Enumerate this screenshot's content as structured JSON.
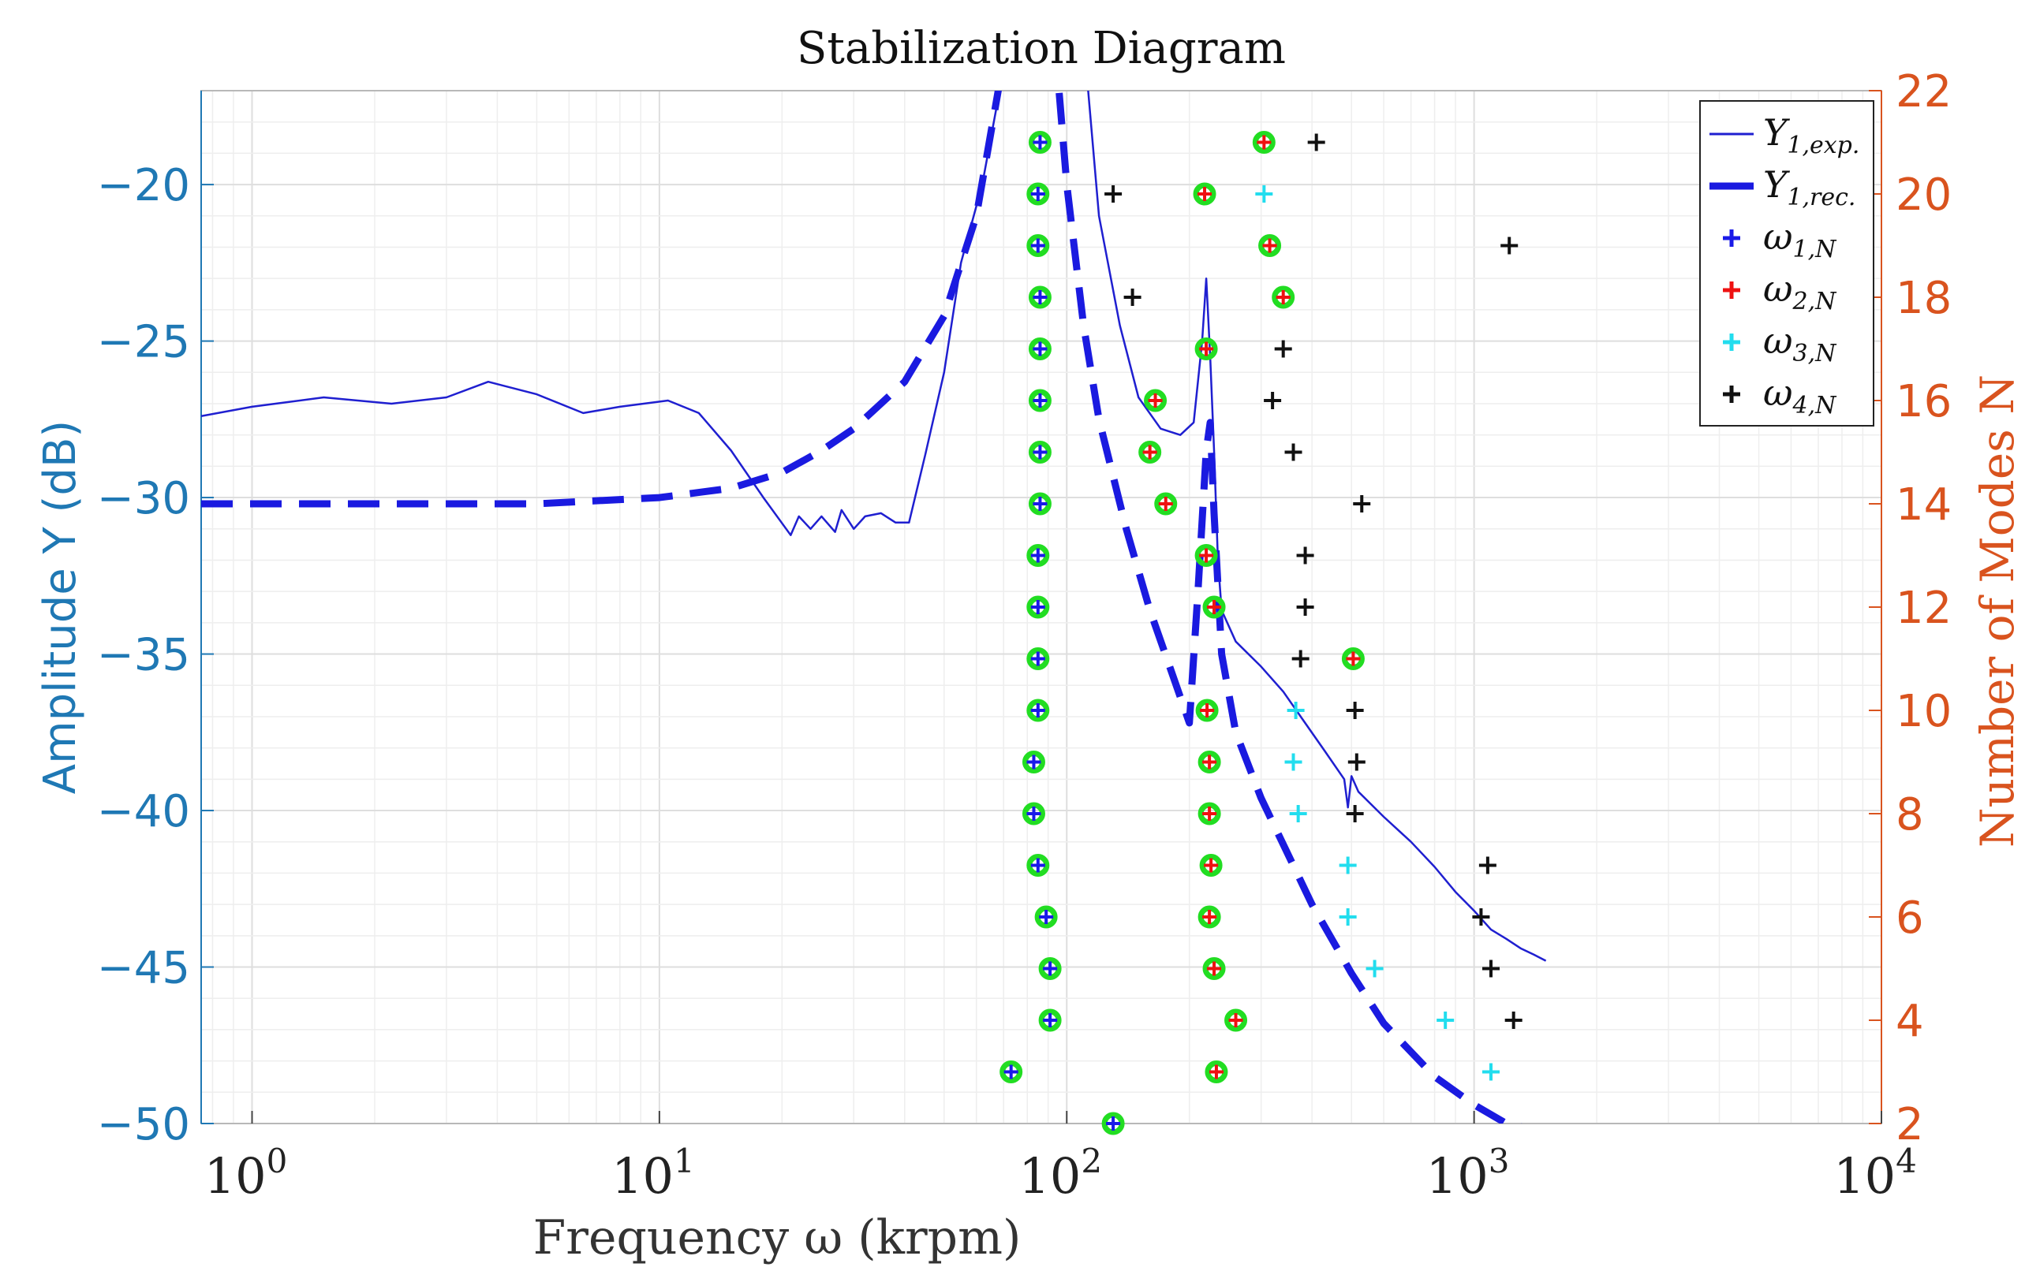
{
  "chart_data": {
    "type": "line",
    "title": "Stabilization Diagram",
    "xlabel": "Frequency ω (krpm)",
    "ylabel_left": "Amplitude Y (dB)",
    "ylabel_right": "Number of Modes N",
    "x_scale": "log",
    "xlim": [
      0.75,
      10000
    ],
    "ylim_left": [
      -50,
      -17
    ],
    "ylim_right": [
      2,
      22
    ],
    "grid": true,
    "x_ticks": [
      {
        "value": 1,
        "base": "10",
        "exp": "0"
      },
      {
        "value": 10,
        "base": "10",
        "exp": "1"
      },
      {
        "value": 100,
        "base": "10",
        "exp": "2"
      },
      {
        "value": 1000,
        "base": "10",
        "exp": "3"
      },
      {
        "value": 10000,
        "base": "10",
        "exp": "4"
      }
    ],
    "y_ticks_left": [
      {
        "value": -20,
        "label": "−20"
      },
      {
        "value": -25,
        "label": "−25"
      },
      {
        "value": -30,
        "label": "−30"
      },
      {
        "value": -35,
        "label": "−35"
      },
      {
        "value": -40,
        "label": "−40"
      },
      {
        "value": -45,
        "label": "−45"
      },
      {
        "value": -50,
        "label": "−50"
      }
    ],
    "y_ticks_right": [
      {
        "value": 22,
        "label": "22"
      },
      {
        "value": 20,
        "label": "20"
      },
      {
        "value": 18,
        "label": "18"
      },
      {
        "value": 16,
        "label": "16"
      },
      {
        "value": 14,
        "label": "14"
      },
      {
        "value": 12,
        "label": "12"
      },
      {
        "value": 10,
        "label": "10"
      },
      {
        "value": 8,
        "label": "8"
      },
      {
        "value": 6,
        "label": "6"
      },
      {
        "value": 4,
        "label": "4"
      },
      {
        "value": 2,
        "label": "2"
      }
    ],
    "legend": {
      "position": "top-right",
      "entries": [
        {
          "key": "exp",
          "base": "Y",
          "sub": "1,exp.",
          "style": "thin-line",
          "color": "#1f1fd0"
        },
        {
          "key": "rec",
          "base": "Y",
          "sub": "1,rec.",
          "style": "thick-dashed-line",
          "color": "#1a1ae0"
        },
        {
          "key": "w1",
          "base": "ω",
          "sub": "1,N",
          "style": "plus",
          "color": "#1a1ae8"
        },
        {
          "key": "w2",
          "base": "ω",
          "sub": "2,N",
          "style": "plus",
          "color": "#ee1111"
        },
        {
          "key": "w3",
          "base": "ω",
          "sub": "3,N",
          "style": "plus",
          "color": "#22ddee"
        },
        {
          "key": "w4",
          "base": "ω",
          "sub": "4,N",
          "style": "plus",
          "color": "#111111"
        }
      ]
    },
    "series_lines": [
      {
        "key": "exp",
        "axis": "left",
        "color": "#1f1fd0",
        "dashed": false,
        "x": [
          0.75,
          1.0,
          1.5,
          2.2,
          3.0,
          3.8,
          5.0,
          6.5,
          8.0,
          10.5,
          12.5,
          15,
          18,
          21,
          22,
          23.5,
          25,
          27,
          28,
          30,
          32,
          35,
          38,
          41,
          45,
          50,
          55,
          62,
          70,
          78,
          83,
          86,
          88,
          92,
          98,
          106,
          112,
          120,
          135,
          150,
          170,
          190,
          205,
          215,
          220,
          225,
          230,
          235,
          240,
          260,
          300,
          340,
          380,
          430,
          480,
          490,
          500,
          520,
          600,
          700,
          800,
          900,
          1000,
          1100,
          1200,
          1300,
          1400,
          1500
        ],
        "y": [
          -27.4,
          -27.1,
          -26.8,
          -27.0,
          -26.8,
          -26.3,
          -26.7,
          -27.3,
          -27.1,
          -26.9,
          -27.3,
          -28.5,
          -30.0,
          -31.2,
          -30.6,
          -31.0,
          -30.6,
          -31.1,
          -30.4,
          -31.0,
          -30.6,
          -30.5,
          -30.8,
          -30.8,
          -28.6,
          -26.0,
          -22.5,
          -20.0,
          -16.3,
          -13.0,
          -10.0,
          -9.1,
          -9.6,
          -11.5,
          -13.5,
          -15.5,
          -16.5,
          -21.0,
          -24.5,
          -26.8,
          -27.8,
          -28.0,
          -27.6,
          -25.0,
          -23.0,
          -25.5,
          -28.5,
          -32.0,
          -33.6,
          -34.6,
          -35.4,
          -36.2,
          -37.1,
          -38.1,
          -39.0,
          -39.9,
          -38.9,
          -39.4,
          -40.2,
          -41.0,
          -41.8,
          -42.6,
          -43.2,
          -43.8,
          -44.1,
          -44.4,
          -44.6,
          -44.8
        ]
      },
      {
        "key": "rec",
        "axis": "left",
        "color": "#1a1ae0",
        "dashed": true,
        "x": [
          0.75,
          1.0,
          2.0,
          5.0,
          10,
          15,
          20,
          25,
          30,
          40,
          50,
          60,
          70,
          78,
          85,
          90,
          95,
          100,
          110,
          120,
          140,
          160,
          180,
          200,
          210,
          220,
          225,
          230,
          240,
          260,
          300,
          400,
          500,
          600,
          800,
          1000,
          1200,
          1400,
          1500
        ],
        "y": [
          -30.2,
          -30.2,
          -30.2,
          -30.2,
          -30.0,
          -29.7,
          -29.2,
          -28.5,
          -27.8,
          -26.3,
          -24.2,
          -21.0,
          -16.0,
          -13.0,
          -12.0,
          -13.5,
          -16.5,
          -20.0,
          -24.5,
          -27.5,
          -31.0,
          -33.6,
          -35.5,
          -37.2,
          -33.0,
          -28.5,
          -27.6,
          -30.5,
          -35.0,
          -37.5,
          -39.6,
          -43.0,
          -45.2,
          -46.8,
          -48.5,
          -49.4,
          -50.0,
          -50.2,
          -50.3
        ]
      }
    ],
    "series_points": [
      {
        "key": "w1",
        "axis": "right",
        "color": "#1a1ae8",
        "ring": true,
        "points": [
          [
            73,
            3
          ],
          [
            91,
            4
          ],
          [
            91,
            5
          ],
          [
            89,
            6
          ],
          [
            85,
            7
          ],
          [
            83,
            8
          ],
          [
            83,
            9
          ],
          [
            85,
            10
          ],
          [
            85,
            11
          ],
          [
            85,
            12
          ],
          [
            85,
            13
          ],
          [
            86,
            14
          ],
          [
            86,
            15
          ],
          [
            86,
            16
          ],
          [
            86,
            17
          ],
          [
            86,
            18
          ],
          [
            85,
            19
          ],
          [
            85,
            20
          ],
          [
            86,
            21
          ],
          [
            130,
            2
          ]
        ]
      },
      {
        "key": "w2",
        "axis": "right",
        "color": "#ee1111",
        "ring": true,
        "points": [
          [
            233,
            3
          ],
          [
            260,
            4
          ],
          [
            230,
            5
          ],
          [
            224,
            6
          ],
          [
            226,
            7
          ],
          [
            224,
            8
          ],
          [
            224,
            9
          ],
          [
            221,
            10
          ],
          [
            505,
            11
          ],
          [
            230,
            12
          ],
          [
            220,
            13
          ],
          [
            175,
            14
          ],
          [
            160,
            15
          ],
          [
            165,
            16
          ],
          [
            220,
            17
          ],
          [
            340,
            18
          ],
          [
            315,
            19
          ],
          [
            218,
            20
          ],
          [
            305,
            21
          ]
        ]
      },
      {
        "key": "w3",
        "axis": "right",
        "color": "#22ddee",
        "ring": false,
        "points": [
          [
            1100,
            3
          ],
          [
            850,
            4
          ],
          [
            570,
            5
          ],
          [
            490,
            6
          ],
          [
            490,
            7
          ],
          [
            370,
            8
          ],
          [
            360,
            9
          ],
          [
            365,
            10
          ],
          [
            305,
            20
          ]
        ]
      },
      {
        "key": "w4",
        "axis": "right",
        "color": "#111111",
        "ring": false,
        "points": [
          [
            1250,
            4
          ],
          [
            1100,
            5
          ],
          [
            1040,
            6
          ],
          [
            1080,
            7
          ],
          [
            510,
            8
          ],
          [
            515,
            9
          ],
          [
            510,
            10
          ],
          [
            375,
            11
          ],
          [
            385,
            12
          ],
          [
            385,
            13
          ],
          [
            530,
            14
          ],
          [
            360,
            15
          ],
          [
            320,
            16
          ],
          [
            340,
            17
          ],
          [
            145,
            18
          ],
          [
            1220,
            19
          ],
          [
            130,
            20
          ],
          [
            410,
            21
          ]
        ]
      }
    ]
  }
}
